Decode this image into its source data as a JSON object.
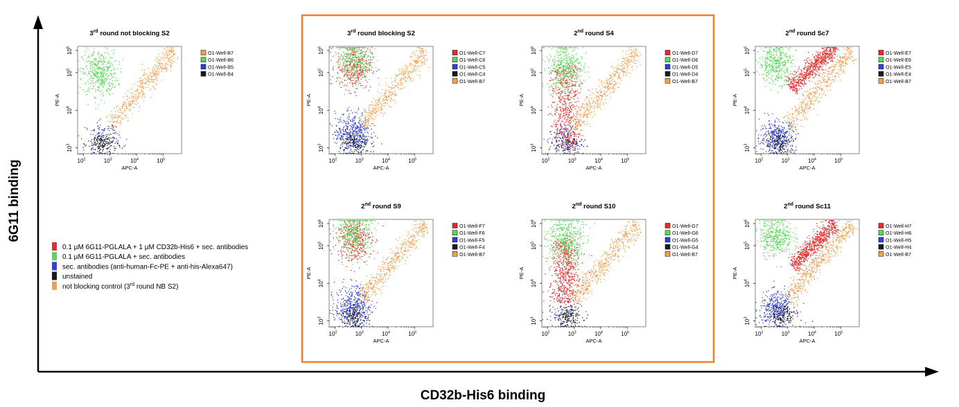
{
  "figure": {
    "y_title": "6G11 binding",
    "x_title": "CD32b-His6 binding",
    "highlight_color": "#ef7f2f"
  },
  "colors": {
    "red": "#e52b2b",
    "green": "#5dd65d",
    "blue": "#2f3fe0",
    "black": "#1b1b1b",
    "orange": "#f0a050"
  },
  "legend": [
    {
      "color": "red",
      "text": "0.1 µM 6G11-PGLALA + 1 µM CD32b-His6 + sec. antibodies"
    },
    {
      "color": "green",
      "text": "0.1 µM 6G11-PGLALA + sec. antibodies"
    },
    {
      "color": "blue",
      "text": "sec. antibodies (anti-human-Fc-PE + anti-his-Alexa647)"
    },
    {
      "color": "black",
      "text": "unstained"
    },
    {
      "color": "orange",
      "text": "not blocking control (3rd round NB S2)"
    }
  ],
  "chart_data": [
    {
      "type": "scatter",
      "title": "3rd round not blocking S2",
      "xlabel": "APC-A",
      "ylabel": "PE-A",
      "x_scale": "log",
      "y_scale": "log",
      "xlim": [
        60,
        500000
      ],
      "ylim": [
        700,
        500000
      ],
      "x_ticks": [
        100,
        1000,
        10000,
        100000
      ],
      "y_ticks": [
        1000,
        10000,
        100000,
        1000000
      ],
      "series": [
        {
          "name": "O1-Well-B7",
          "color": "orange",
          "distribution": "diagonal",
          "x_range": [
            1000,
            250000
          ],
          "y_range": [
            4000,
            400000
          ],
          "n": 500
        },
        {
          "name": "O1-Well-B6",
          "color": "green",
          "distribution": "cluster",
          "x_center": 400,
          "y_center": 100000,
          "x_spread": 3,
          "y_spread": 3,
          "n": 450
        },
        {
          "name": "O1-Well-B5",
          "color": "blue",
          "distribution": "cluster",
          "x_center": 500,
          "y_center": 2000,
          "x_spread": 3,
          "y_spread": 2,
          "n": 110
        },
        {
          "name": "O1-Well-B4",
          "color": "black",
          "distribution": "cluster",
          "x_center": 500,
          "y_center": 1300,
          "x_spread": 2.5,
          "y_spread": 1.6,
          "n": 180
        }
      ]
    },
    {
      "type": "scatter",
      "title": "3rd round blocking S2",
      "xlabel": "APC-A",
      "ylabel": "PE-A",
      "x_scale": "log",
      "y_scale": "log",
      "xlim": [
        60,
        500000
      ],
      "ylim": [
        700,
        500000
      ],
      "x_ticks": [
        100,
        1000,
        10000,
        100000
      ],
      "y_ticks": [
        1000,
        10000,
        100000,
        1000000
      ],
      "series": [
        {
          "name": "O1-Well-C7",
          "color": "red",
          "distribution": "cluster",
          "x_center": 500,
          "y_center": 150000,
          "x_spread": 3,
          "y_spread": 3,
          "n": 380
        },
        {
          "name": "O1-Well-C6",
          "color": "green",
          "distribution": "cluster",
          "x_center": 500,
          "y_center": 220000,
          "x_spread": 3,
          "y_spread": 3,
          "n": 380
        },
        {
          "name": "O1-Well-C5",
          "color": "blue",
          "distribution": "cluster",
          "x_center": 450,
          "y_center": 2500,
          "x_spread": 3,
          "y_spread": 2.8,
          "n": 450
        },
        {
          "name": "O1-Well-C4",
          "color": "black",
          "distribution": "cluster",
          "x_center": 500,
          "y_center": 1400,
          "x_spread": 2.5,
          "y_spread": 1.7,
          "n": 150
        },
        {
          "name": "O1-Well-B7",
          "color": "orange",
          "distribution": "diagonal",
          "x_range": [
            1000,
            250000
          ],
          "y_range": [
            4000,
            400000
          ],
          "n": 500
        }
      ]
    },
    {
      "type": "scatter",
      "title": "2nd round S4",
      "xlabel": "APC-A",
      "ylabel": "PE-A",
      "x_scale": "log",
      "y_scale": "log",
      "xlim": [
        60,
        500000
      ],
      "ylim": [
        700,
        500000
      ],
      "x_ticks": [
        100,
        1000,
        10000,
        100000
      ],
      "y_ticks": [
        1000,
        10000,
        100000,
        1000000
      ],
      "series": [
        {
          "name": "O1-Well-D7",
          "color": "red",
          "distribution": "column",
          "x_center": 450,
          "x_spread": 2.5,
          "y_range": [
            1000,
            150000
          ],
          "n": 650
        },
        {
          "name": "O1-Well-D6",
          "color": "green",
          "distribution": "cluster",
          "x_center": 450,
          "y_center": 150000,
          "x_spread": 3,
          "y_spread": 3.5,
          "n": 450
        },
        {
          "name": "O1-Well-D5",
          "color": "blue",
          "distribution": "cluster",
          "x_center": 450,
          "y_center": 1500,
          "x_spread": 3,
          "y_spread": 2,
          "n": 140
        },
        {
          "name": "O1-Well-D4",
          "color": "black",
          "distribution": "cluster",
          "x_center": 500,
          "y_center": 1300,
          "x_spread": 2.5,
          "y_spread": 1.5,
          "n": 60
        },
        {
          "name": "O1-Well-B7",
          "color": "orange",
          "distribution": "diagonal",
          "x_range": [
            1000,
            250000
          ],
          "y_range": [
            4000,
            400000
          ],
          "n": 500
        }
      ]
    },
    {
      "type": "scatter",
      "title": "2nd round Sc7",
      "xlabel": "APC-A",
      "ylabel": "PE-A",
      "x_scale": "log",
      "y_scale": "log",
      "xlim": [
        60,
        500000
      ],
      "ylim": [
        700,
        500000
      ],
      "x_ticks": [
        100,
        1000,
        10000,
        100000
      ],
      "y_ticks": [
        1000,
        10000,
        100000,
        1000000
      ],
      "series": [
        {
          "name": "O1-Well-E7",
          "color": "red",
          "distribution": "diagonal",
          "x_range": [
            1200,
            60000
          ],
          "y_range": [
            40000,
            500000
          ],
          "n": 700
        },
        {
          "name": "O1-Well-E6",
          "color": "green",
          "distribution": "cluster",
          "x_center": 350,
          "y_center": 180000,
          "x_spread": 2.8,
          "y_spread": 2.6,
          "n": 420
        },
        {
          "name": "O1-Well-E5",
          "color": "blue",
          "distribution": "cluster",
          "x_center": 400,
          "y_center": 2000,
          "x_spread": 3,
          "y_spread": 2.2,
          "n": 350
        },
        {
          "name": "O1-Well-E4",
          "color": "black",
          "distribution": "cluster",
          "x_center": 500,
          "y_center": 1300,
          "x_spread": 2.5,
          "y_spread": 1.6,
          "n": 140
        },
        {
          "name": "O1-Well-B7",
          "color": "orange",
          "distribution": "diagonal",
          "x_range": [
            1000,
            250000
          ],
          "y_range": [
            4000,
            400000
          ],
          "n": 500
        }
      ]
    },
    {
      "type": "scatter",
      "title": "2nd round S9",
      "xlabel": "APC-A",
      "ylabel": "PE-A",
      "x_scale": "log",
      "y_scale": "log",
      "xlim": [
        60,
        500000
      ],
      "ylim": [
        700,
        500000
      ],
      "x_ticks": [
        100,
        1000,
        10000,
        100000
      ],
      "y_ticks": [
        1000,
        10000,
        100000,
        1000000
      ],
      "series": [
        {
          "name": "O1-Well-F7",
          "color": "red",
          "distribution": "cluster",
          "x_center": 500,
          "y_center": 150000,
          "x_spread": 3,
          "y_spread": 3,
          "n": 380
        },
        {
          "name": "O1-Well-F6",
          "color": "green",
          "distribution": "cluster",
          "x_center": 500,
          "y_center": 220000,
          "x_spread": 3,
          "y_spread": 3,
          "n": 380
        },
        {
          "name": "O1-Well-F5",
          "color": "blue",
          "distribution": "cluster",
          "x_center": 450,
          "y_center": 2500,
          "x_spread": 3,
          "y_spread": 2.8,
          "n": 420
        },
        {
          "name": "O1-Well-F4",
          "color": "black",
          "distribution": "cluster",
          "x_center": 550,
          "y_center": 1400,
          "x_spread": 2.5,
          "y_spread": 1.7,
          "n": 170
        },
        {
          "name": "O1-Well-B7",
          "color": "orange",
          "distribution": "diagonal",
          "x_range": [
            1000,
            250000
          ],
          "y_range": [
            4000,
            400000
          ],
          "n": 500
        }
      ]
    },
    {
      "type": "scatter",
      "title": "2nd round S10",
      "xlabel": "APC-A",
      "ylabel": "PE-A",
      "x_scale": "log",
      "y_scale": "log",
      "xlim": [
        60,
        500000
      ],
      "ylim": [
        700,
        500000
      ],
      "x_ticks": [
        100,
        1000,
        10000,
        100000
      ],
      "y_ticks": [
        1000,
        10000,
        100000,
        1000000
      ],
      "series": [
        {
          "name": "O1-Well-G7",
          "color": "red",
          "distribution": "column",
          "x_center": 450,
          "x_spread": 2.5,
          "y_range": [
            3000,
            150000
          ],
          "n": 650
        },
        {
          "name": "O1-Well-G6",
          "color": "green",
          "distribution": "cluster",
          "x_center": 450,
          "y_center": 150000,
          "x_spread": 3,
          "y_spread": 3.5,
          "n": 450
        },
        {
          "name": "O1-Well-G5",
          "color": "blue",
          "distribution": "cluster",
          "x_center": 450,
          "y_center": 1500,
          "x_spread": 3,
          "y_spread": 1.8,
          "n": 80
        },
        {
          "name": "O1-Well-G4",
          "color": "black",
          "distribution": "cluster",
          "x_center": 550,
          "y_center": 1300,
          "x_spread": 2.5,
          "y_spread": 1.5,
          "n": 160
        },
        {
          "name": "O1-Well-B7",
          "color": "orange",
          "distribution": "diagonal",
          "x_range": [
            1000,
            250000
          ],
          "y_range": [
            4000,
            400000
          ],
          "n": 500
        }
      ]
    },
    {
      "type": "scatter",
      "title": "2nd round Sc11",
      "xlabel": "APC-A",
      "ylabel": "PE-A",
      "x_scale": "log",
      "y_scale": "log",
      "xlim": [
        60,
        500000
      ],
      "ylim": [
        700,
        500000
      ],
      "x_ticks": [
        100,
        1000,
        10000,
        100000
      ],
      "y_ticks": [
        1000,
        10000,
        100000,
        1000000
      ],
      "series": [
        {
          "name": "O1-Well-H7",
          "color": "red",
          "distribution": "diagonal",
          "x_range": [
            1500,
            60000
          ],
          "y_range": [
            30000,
            400000
          ],
          "n": 700
        },
        {
          "name": "O1-Well-H6",
          "color": "green",
          "distribution": "cluster",
          "x_center": 350,
          "y_center": 180000,
          "x_spread": 2.8,
          "y_spread": 2.6,
          "n": 420
        },
        {
          "name": "O1-Well-H5",
          "color": "blue",
          "distribution": "cluster",
          "x_center": 400,
          "y_center": 2200,
          "x_spread": 3,
          "y_spread": 2.2,
          "n": 380
        },
        {
          "name": "O1-Well-H4",
          "color": "black",
          "distribution": "cluster",
          "x_center": 550,
          "y_center": 1400,
          "x_spread": 2.5,
          "y_spread": 1.6,
          "n": 150
        },
        {
          "name": "O1-Well-B7",
          "color": "orange",
          "distribution": "diagonal",
          "x_range": [
            1000,
            250000
          ],
          "y_range": [
            4000,
            400000
          ],
          "n": 500
        }
      ]
    }
  ]
}
